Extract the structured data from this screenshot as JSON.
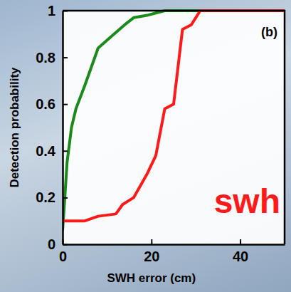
{
  "chart_data": {
    "type": "line",
    "x_label": "SWH error (cm)",
    "y_label": "Detection probability",
    "annotations": [
      "(b)",
      "swh"
    ],
    "xlim": [
      0,
      50
    ],
    "ylim": [
      0,
      1
    ],
    "xticks": [
      0,
      20,
      40
    ],
    "yticks": [
      0,
      0.2,
      0.4,
      0.6,
      0.8,
      1
    ],
    "series": [
      {
        "color": "#1a8a1a",
        "x": [
          0,
          0.5,
          1,
          2,
          3,
          5,
          8,
          11,
          14,
          16,
          19,
          21,
          23,
          50
        ],
        "values": [
          0.06,
          0.2,
          0.35,
          0.5,
          0.58,
          0.68,
          0.84,
          0.89,
          0.94,
          0.97,
          0.98,
          0.99,
          1,
          1
        ]
      },
      {
        "color": "#ff1a1a",
        "x": [
          0,
          5,
          8,
          12,
          13.5,
          16,
          19,
          21,
          23,
          25,
          27,
          29,
          31,
          50
        ],
        "values": [
          0.1,
          0.1,
          0.12,
          0.13,
          0.17,
          0.2,
          0.3,
          0.38,
          0.58,
          0.6,
          0.92,
          0.94,
          1,
          1
        ]
      }
    ]
  }
}
